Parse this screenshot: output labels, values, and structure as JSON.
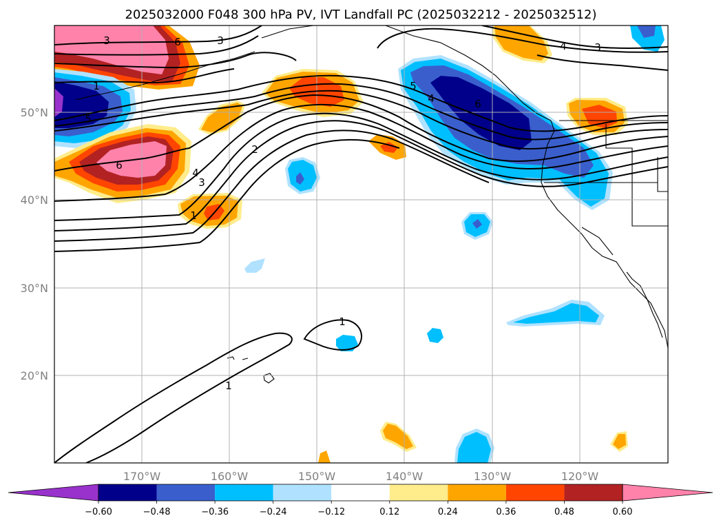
{
  "title": "2025032000 F048 300 hPa PV, IVT Landfall PC (2025032212 - 2025032512)",
  "map": {
    "lon_labels": [
      "170°W",
      "160°W",
      "150°W",
      "140°W",
      "130°W",
      "120°W"
    ],
    "lat_labels": [
      "50°N",
      "40°N",
      "30°N",
      "20°N"
    ],
    "gridlines": true,
    "contour_labels": [
      "3",
      "6",
      "3",
      "1",
      "5",
      "6",
      "2",
      "4",
      "3",
      "1",
      "5",
      "4",
      "6",
      "4",
      "3",
      "1",
      "1"
    ]
  },
  "colorbar": {
    "tick_labels": [
      "−0.60",
      "−0.48",
      "−0.36",
      "−0.24",
      "−0.12",
      "0.12",
      "0.24",
      "0.36",
      "0.48",
      "0.60"
    ],
    "colors": [
      "#9932CC",
      "#00008B",
      "#3A5FCD",
      "#00BFFF",
      "#B0E2FF",
      "#FFFFFF",
      "#FFEC8B",
      "#FFA500",
      "#FF4500",
      "#B22222",
      "#FF82AB"
    ]
  }
}
